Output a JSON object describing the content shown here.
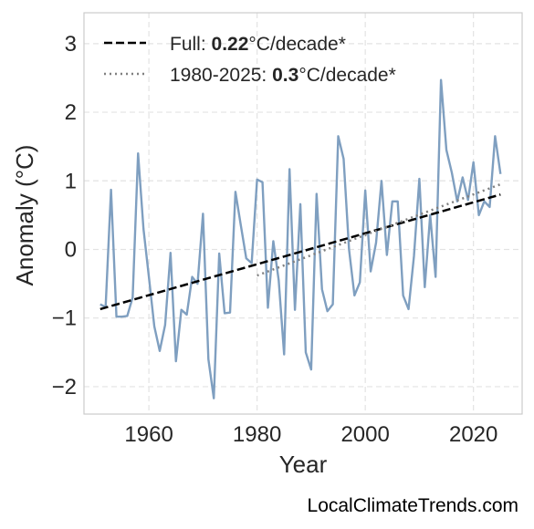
{
  "chart_data": {
    "type": "line",
    "xlabel": "Year",
    "ylabel": "Anomaly (°C)",
    "xlim": [
      1948,
      2029
    ],
    "ylim": [
      -2.4,
      3.45
    ],
    "xticks": [
      1960,
      1980,
      2000,
      2020
    ],
    "yticks": [
      -2,
      -1,
      0,
      1,
      2,
      3
    ],
    "ytick_labels": [
      "−2",
      "−1",
      "0",
      "1",
      "2",
      "3"
    ],
    "grid": true,
    "legend_position": "top-left",
    "series": [
      {
        "style": "solid",
        "color": "#7f9fc0",
        "x": [
          1951,
          1952,
          1953,
          1954,
          1955,
          1956,
          1957,
          1958,
          1959,
          1960,
          1961,
          1962,
          1963,
          1964,
          1965,
          1966,
          1967,
          1968,
          1969,
          1970,
          1971,
          1972,
          1973,
          1974,
          1975,
          1976,
          1977,
          1978,
          1979,
          1980,
          1981,
          1982,
          1983,
          1984,
          1985,
          1986,
          1987,
          1988,
          1989,
          1990,
          1991,
          1992,
          1993,
          1994,
          1995,
          1996,
          1997,
          1998,
          1999,
          2000,
          2001,
          2002,
          2003,
          2004,
          2005,
          2006,
          2007,
          2008,
          2009,
          2010,
          2011,
          2012,
          2013,
          2014,
          2015,
          2016,
          2017,
          2018,
          2019,
          2020,
          2021,
          2022,
          2023,
          2024,
          2025
        ],
        "y": [
          -0.8,
          -0.84,
          0.87,
          -0.98,
          -0.98,
          -0.97,
          -0.7,
          1.4,
          0.3,
          -0.4,
          -1.12,
          -1.48,
          -1.1,
          -0.05,
          -1.63,
          -0.88,
          -0.95,
          -0.4,
          -0.5,
          0.52,
          -1.6,
          -2.17,
          -0.06,
          -0.93,
          -0.92,
          0.84,
          0.35,
          -0.13,
          -0.2,
          1.02,
          0.98,
          -0.85,
          0.12,
          -0.45,
          -1.53,
          1.17,
          -0.88,
          0.66,
          -1.5,
          -1.75,
          0.81,
          -0.58,
          -0.9,
          -0.8,
          1.65,
          1.32,
          0.0,
          -0.67,
          -0.48,
          0.86,
          -0.32,
          0.1,
          1.0,
          -0.08,
          0.7,
          0.7,
          -0.67,
          -0.87,
          -0.1,
          1.03,
          -0.55,
          0.5,
          -0.4,
          2.47,
          1.45,
          1.12,
          0.7,
          1.05,
          0.72,
          1.27,
          0.5,
          0.7,
          0.62,
          1.65,
          1.1
        ]
      },
      {
        "name": "Full:",
        "trend_value": "0.22",
        "trend_unit": "°C/decade*",
        "style": "dashed",
        "color": "#000000",
        "x": [
          1951,
          2025
        ],
        "y": [
          -0.87,
          0.8
        ]
      },
      {
        "name": "1980-2025:",
        "trend_value": "0.3",
        "trend_unit": "°C/decade*",
        "style": "dotted",
        "color": "#808080",
        "x": [
          1980,
          2025
        ],
        "y": [
          -0.38,
          0.95
        ]
      }
    ]
  },
  "watermark": "LocalClimateTrends.com"
}
